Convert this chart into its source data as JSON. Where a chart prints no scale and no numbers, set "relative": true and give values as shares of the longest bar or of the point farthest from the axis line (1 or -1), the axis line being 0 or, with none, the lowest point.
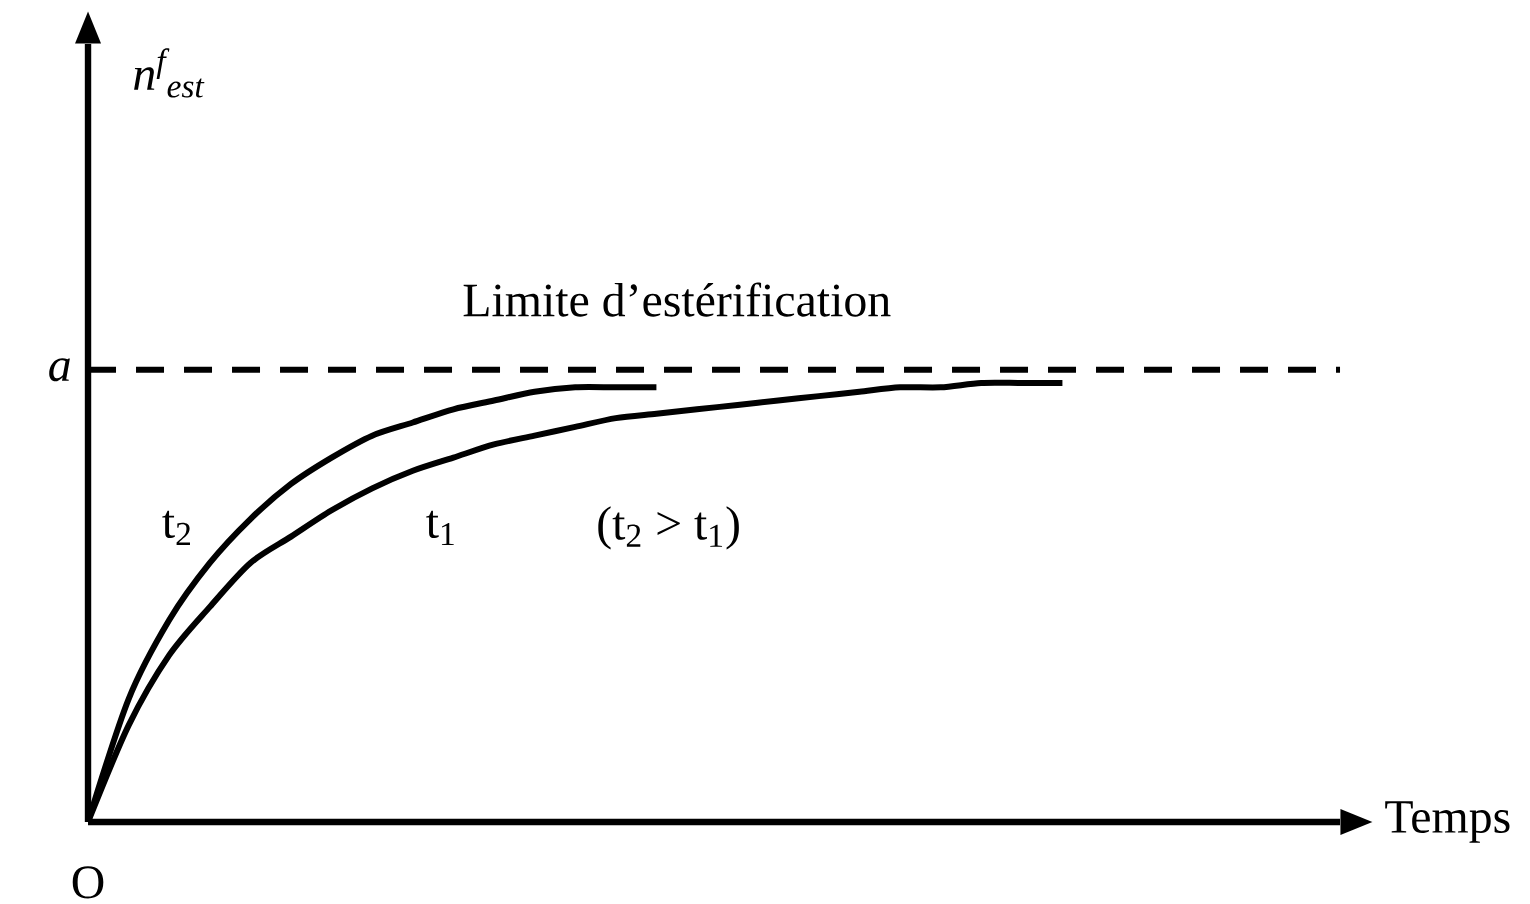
{
  "chart_data": {
    "type": "line",
    "relative": true,
    "categories": [
      null,
      null,
      null,
      null,
      null,
      null,
      null,
      null,
      null,
      null,
      null,
      null,
      null,
      null,
      null,
      null,
      null,
      null,
      null,
      null,
      null,
      null,
      null,
      null,
      null
    ],
    "series": [
      {
        "name": "t$_{2}$",
        "color": "#000000",
        "values": [
          0,
          0.28,
          0.46,
          0.59,
          0.69,
          0.77,
          0.83,
          0.88,
          0.91,
          0.94,
          0.96,
          0.98,
          0.99,
          0.99,
          0.99,
          null,
          null,
          null,
          null,
          null,
          null,
          null,
          null,
          null,
          null
        ]
      },
      {
        "name": "t$_{1}$",
        "color": "#000000",
        "values": [
          0,
          0.22,
          0.38,
          0.49,
          0.59,
          0.65,
          0.71,
          0.76,
          0.8,
          0.83,
          0.86,
          0.88,
          0.9,
          0.92,
          0.93,
          0.94,
          0.95,
          0.96,
          0.97,
          0.98,
          0.99,
          0.99,
          1.0,
          1.0,
          1.0
        ]
      }
    ],
    "ref_lines": [
      {
        "axis": "y",
        "value": 1.03,
        "label": "a",
        "color": "#000000",
        "line_style": "dashed"
      }
    ],
    "annotations": [
      "Limite d’estérification",
      "(t$_{2}$ > t$_{1}$)",
      "O",
      "Temps",
      "n$^{f}$$_{est}$"
    ],
    "marker": "none",
    "line_style": "solid",
    "legend": false
  }
}
